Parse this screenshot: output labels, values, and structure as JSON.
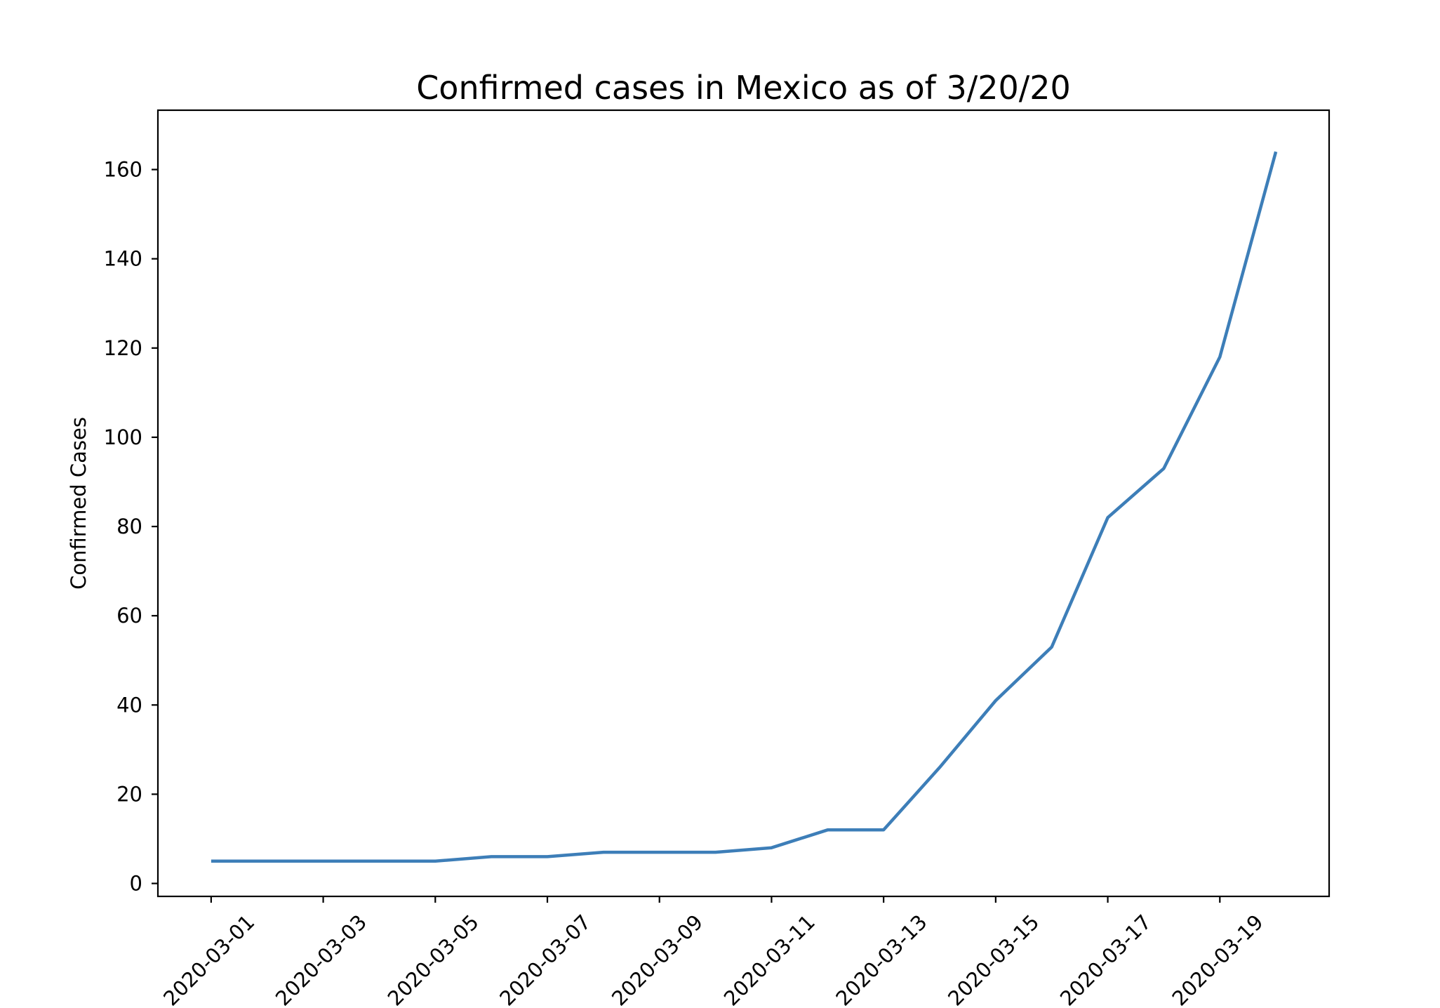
{
  "figure": {
    "background": "#ffffff",
    "title": "Confirmed cases in Mexico as of 3/20/20"
  },
  "chart_data": {
    "type": "line",
    "title": "Confirmed cases in Mexico as of 3/20/20",
    "xlabel": "",
    "ylabel": "Confirmed Cases",
    "series": [
      {
        "name": "Confirmed Cases",
        "x": [
          "2020-03-01",
          "2020-03-02",
          "2020-03-03",
          "2020-03-04",
          "2020-03-05",
          "2020-03-06",
          "2020-03-07",
          "2020-03-08",
          "2020-03-09",
          "2020-03-10",
          "2020-03-11",
          "2020-03-12",
          "2020-03-13",
          "2020-03-14",
          "2020-03-15",
          "2020-03-16",
          "2020-03-17",
          "2020-03-18",
          "2020-03-19",
          "2020-03-20"
        ],
        "values": [
          5,
          5,
          5,
          5,
          5,
          6,
          6,
          7,
          7,
          7,
          8,
          12,
          12,
          26,
          41,
          53,
          82,
          93,
          118,
          164
        ]
      }
    ],
    "x_tick_labels": [
      "2020-03-01",
      "2020-03-03",
      "2020-03-05",
      "2020-03-07",
      "2020-03-09",
      "2020-03-11",
      "2020-03-13",
      "2020-03-15",
      "2020-03-17",
      "2020-03-19"
    ],
    "y_ticks": [
      0,
      20,
      40,
      60,
      80,
      100,
      120,
      140,
      160
    ],
    "x_tick_rotation": 45,
    "xlim_day_index": [
      -0.95,
      19.95
    ],
    "ylim": [
      -2.9,
      173.3
    ],
    "grid": false,
    "legend": false,
    "line_color": "#3d7eb8",
    "axis_color": "#000000"
  }
}
